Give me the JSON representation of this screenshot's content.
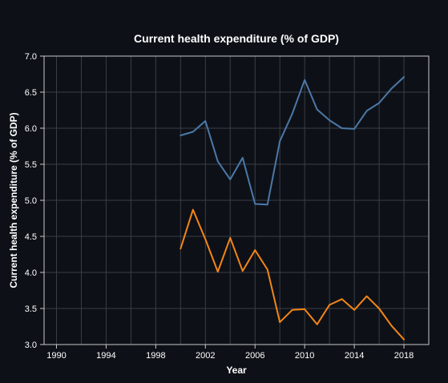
{
  "chart_data": {
    "type": "line",
    "title": "Current health expenditure (% of GDP)",
    "xlabel": "Year",
    "ylabel": "Current health expenditure (% of GDP)",
    "xlim": [
      1989,
      2020
    ],
    "ylim": [
      3.0,
      7.0
    ],
    "x_ticks": [
      1990,
      1994,
      1998,
      2002,
      2006,
      2010,
      2014,
      2018
    ],
    "x_tick_labels": [
      "1990",
      "1994",
      "1998",
      "2002",
      "2006",
      "2010",
      "2014",
      "2018"
    ],
    "x_minor_grid": [
      1992,
      1996,
      2000,
      2004,
      2008,
      2012,
      2016
    ],
    "y_ticks": [
      3.0,
      3.5,
      4.0,
      4.5,
      5.0,
      5.5,
      6.0,
      6.5,
      7.0
    ],
    "y_tick_labels": [
      "3.0",
      "3.5",
      "4.0",
      "4.5",
      "5.0",
      "5.5",
      "6.0",
      "6.5",
      "7.0"
    ],
    "grid": true,
    "background": "#0d1117",
    "x": [
      2000,
      2001,
      2002,
      2003,
      2004,
      2005,
      2006,
      2007,
      2008,
      2009,
      2010,
      2011,
      2012,
      2013,
      2014,
      2015,
      2016,
      2017,
      2018
    ],
    "series": [
      {
        "color": "#4c78a8",
        "values": [
          5.9,
          5.95,
          6.1,
          5.54,
          5.29,
          5.59,
          4.95,
          4.94,
          5.82,
          6.2,
          6.67,
          6.26,
          6.11,
          6.0,
          5.99,
          6.24,
          6.35,
          6.55,
          6.71
        ]
      },
      {
        "color": "#f58518",
        "values": [
          4.33,
          4.87,
          4.46,
          4.01,
          4.48,
          4.02,
          4.31,
          4.04,
          3.31,
          3.48,
          3.49,
          3.28,
          3.55,
          3.63,
          3.48,
          3.67,
          3.5,
          3.26,
          3.07
        ]
      }
    ]
  }
}
